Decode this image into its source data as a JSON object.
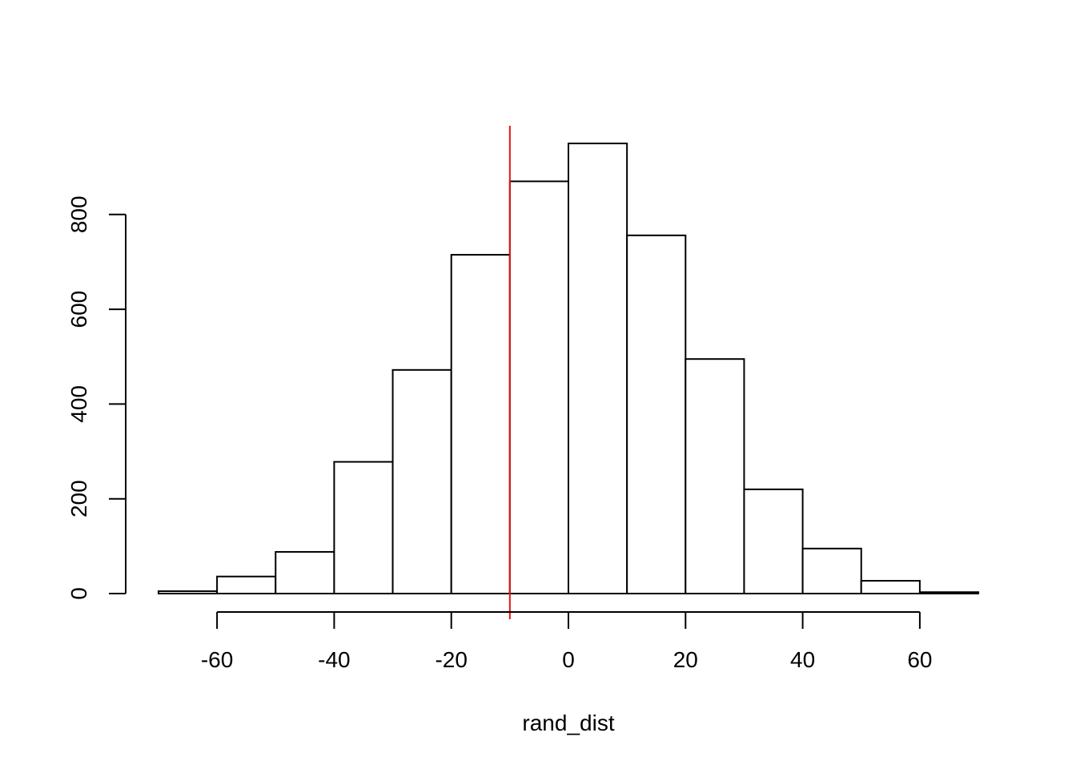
{
  "chart_data": {
    "type": "bar",
    "title": "",
    "xlabel": "rand_dist",
    "ylabel": "",
    "bins": [
      {
        "from": -70,
        "to": -60,
        "count": 5
      },
      {
        "from": -60,
        "to": -50,
        "count": 36
      },
      {
        "from": -50,
        "to": -40,
        "count": 88
      },
      {
        "from": -40,
        "to": -30,
        "count": 278
      },
      {
        "from": -30,
        "to": -20,
        "count": 472
      },
      {
        "from": -20,
        "to": -10,
        "count": 715
      },
      {
        "from": -10,
        "to": 0,
        "count": 870
      },
      {
        "from": 0,
        "to": 10,
        "count": 950
      },
      {
        "from": 10,
        "to": 20,
        "count": 756
      },
      {
        "from": 20,
        "to": 30,
        "count": 495
      },
      {
        "from": 30,
        "to": 40,
        "count": 220
      },
      {
        "from": 40,
        "to": 50,
        "count": 95
      },
      {
        "from": 50,
        "to": 60,
        "count": 27
      },
      {
        "from": 60,
        "to": 70,
        "count": 3
      }
    ],
    "xlim": [
      -70,
      70
    ],
    "ylim": [
      0,
      950
    ],
    "x_ticks": [
      -60,
      -40,
      -20,
      0,
      20,
      40,
      60
    ],
    "x_tick_labels": [
      "-60",
      "-40",
      "-20",
      "0",
      "20",
      "40",
      "60"
    ],
    "y_ticks": [
      0,
      200,
      400,
      600,
      800
    ],
    "y_tick_labels": [
      "0",
      "200",
      "400",
      "600",
      "800"
    ],
    "vline": {
      "x": -10,
      "color": "#e8150f"
    },
    "bar_fill": "#ffffff",
    "bar_stroke": "#000000",
    "grid": false,
    "legend": "none"
  }
}
